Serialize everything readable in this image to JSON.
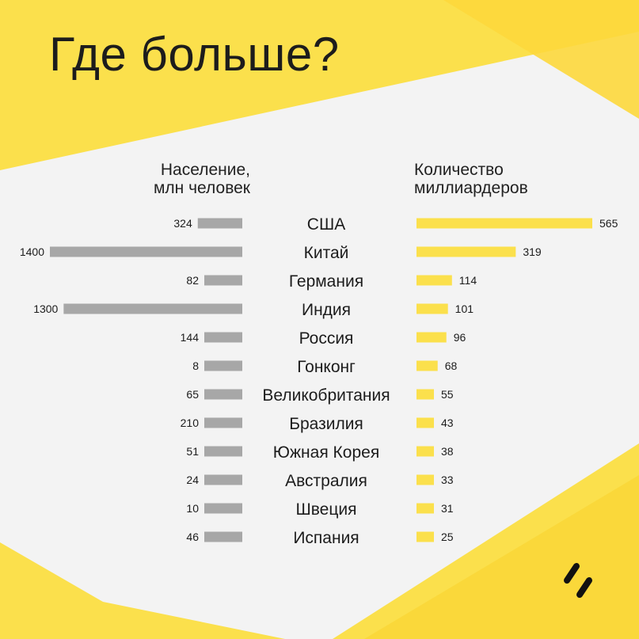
{
  "title": "Где больше?",
  "left_header": [
    "Население,",
    "млн человек"
  ],
  "right_header": [
    "Количество",
    "миллиардеров"
  ],
  "colors": {
    "background": "#f3f3f3",
    "accent_yellow": "#fbe04c",
    "gray_bar": "#a7a7a7",
    "text": "#1c1c1c"
  },
  "logo": "double-slash-logo-icon",
  "chart_data": {
    "type": "bar",
    "categories": [
      "США",
      "Китай",
      "Германия",
      "Индия",
      "Россия",
      "Гонконг",
      "Великобритания",
      "Бразилия",
      "Южная Корея",
      "Австралия",
      "Швеция",
      "Испания"
    ],
    "series": [
      {
        "name": "Население, млн человек",
        "values": [
          324,
          1400,
          82,
          1300,
          144,
          8,
          65,
          210,
          51,
          24,
          10,
          46
        ]
      },
      {
        "name": "Количество миллиардеров",
        "values": [
          565,
          319,
          114,
          101,
          96,
          68,
          55,
          43,
          38,
          33,
          31,
          25
        ]
      }
    ]
  }
}
